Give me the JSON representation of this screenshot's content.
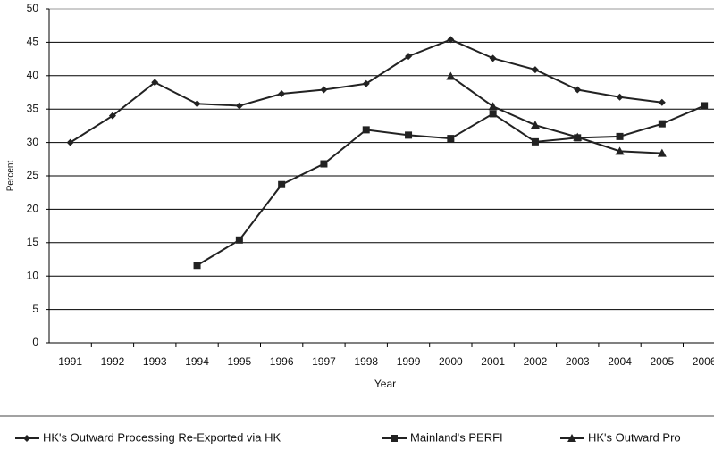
{
  "chart_data": {
    "type": "line",
    "x_label": "Year",
    "y_label": "Percent",
    "categories": [
      "1991",
      "1992",
      "1993",
      "1994",
      "1995",
      "1996",
      "1997",
      "1998",
      "1999",
      "2000",
      "2001",
      "2002",
      "2003",
      "2004",
      "2005",
      "2006"
    ],
    "series": [
      {
        "name": "HK's Outward Processing Re-Exported via HK",
        "color": "#222222",
        "marker": "diamond",
        "values": [
          30,
          34,
          39,
          35.8,
          35.5,
          37.3,
          37.9,
          38.8,
          42.9,
          45.4,
          42.6,
          40.9,
          37.9,
          36.8,
          36,
          null
        ]
      },
      {
        "name": "Mainland's PERFI",
        "color": "#222222",
        "marker": "square",
        "values": [
          null,
          null,
          null,
          11.6,
          15.4,
          23.7,
          26.8,
          31.9,
          31.1,
          30.6,
          34.3,
          30.1,
          30.7,
          30.9,
          32.8,
          35.5
        ]
      },
      {
        "name": "HK's Outward Pro",
        "color": "#222222",
        "marker": "triangle",
        "values": [
          null,
          null,
          null,
          null,
          null,
          null,
          null,
          null,
          null,
          39.9,
          35.4,
          32.6,
          30.8,
          28.7,
          28.4,
          null
        ]
      }
    ],
    "ylim": [
      0,
      50
    ],
    "yticks": [
      0,
      5,
      10,
      15,
      20,
      25,
      30,
      35,
      40,
      45,
      50
    ],
    "grid": true
  }
}
